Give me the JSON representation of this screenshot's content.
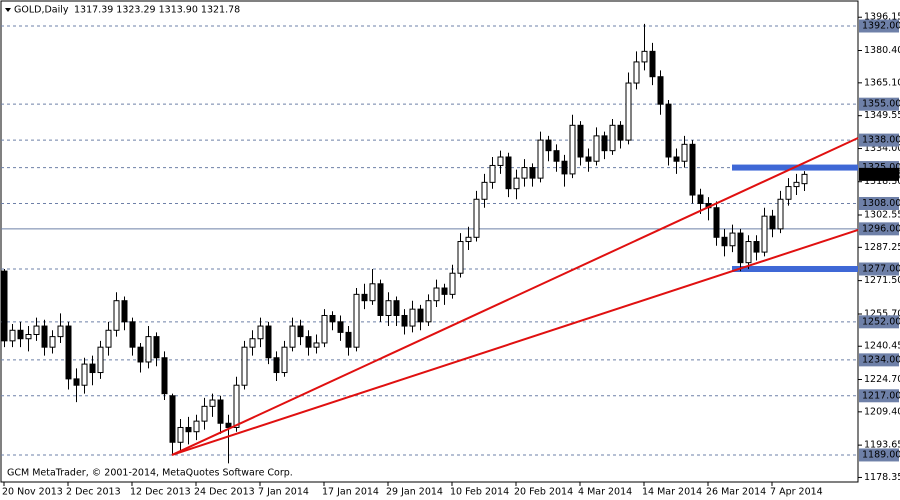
{
  "chart_data": {
    "type": "candlestick",
    "title": "GOLD,Daily",
    "quote": "1317.39 1323.29 1313.90 1321.78",
    "footer": "GCM MetaTrader, © 2001-2014, MetaQuotes Software Corp.",
    "categories": [
      "20 Nov 2013",
      null,
      null,
      null,
      null,
      null,
      null,
      null,
      "2 Dec 2013",
      null,
      null,
      null,
      null,
      null,
      null,
      null,
      "12 Dec 2013",
      null,
      null,
      null,
      null,
      null,
      null,
      null,
      "24 Dec 2013",
      null,
      null,
      null,
      null,
      null,
      null,
      null,
      "7 Jan 2014",
      null,
      null,
      null,
      null,
      null,
      null,
      null,
      "17 Jan 2014",
      null,
      null,
      null,
      null,
      null,
      null,
      null,
      "29 Jan 2014",
      null,
      null,
      null,
      null,
      null,
      null,
      null,
      "10 Feb 2014",
      null,
      null,
      null,
      null,
      null,
      null,
      null,
      "20 Feb 2014",
      null,
      null,
      null,
      null,
      null,
      null,
      null,
      "4 Mar 2014",
      null,
      null,
      null,
      null,
      null,
      null,
      null,
      "14 Mar 2014",
      null,
      null,
      null,
      null,
      null,
      null,
      null,
      "26 Mar 2014",
      null,
      null,
      null,
      null,
      null,
      null,
      null,
      "7 Apr 2014",
      null,
      null,
      null,
      null
    ],
    "open": [
      1276,
      1243,
      1248,
      1244,
      1246,
      1250,
      1240,
      1245,
      1250,
      1225,
      1222,
      1232,
      1228,
      1240,
      1248,
      1262,
      1252,
      1240,
      1233,
      1245,
      1235,
      1217,
      1195,
      1202,
      1200,
      1205,
      1212,
      1215,
      1204,
      1202,
      1222,
      1240,
      1244,
      1250,
      1235,
      1228,
      1240,
      1250,
      1245,
      1240,
      1242,
      1255,
      1252,
      1247,
      1240,
      1265,
      1262,
      1270,
      1255,
      1262,
      1255,
      1250,
      1258,
      1252,
      1262,
      1268,
      1265,
      1275,
      1290,
      1292,
      1310,
      1318,
      1326,
      1330,
      1315,
      1320,
      1325,
      1320,
      1338,
      1333,
      1328,
      1322,
      1345,
      1330,
      1328,
      1340,
      1333,
      1345,
      1338,
      1365,
      1375,
      1380,
      1368,
      1355,
      1330,
      1328,
      1336,
      1312,
      1308,
      1306,
      1292,
      1288,
      1294,
      1280,
      1290,
      1285,
      1302,
      1296,
      1310,
      1316,
      1317.39
    ],
    "high": [
      1277,
      1251,
      1252,
      1250,
      1254,
      1253,
      1248,
      1256,
      1252,
      1230,
      1235,
      1236,
      1243,
      1252,
      1266,
      1264,
      1254,
      1242,
      1250,
      1247,
      1238,
      1218,
      1206,
      1207,
      1208,
      1216,
      1218,
      1217,
      1208,
      1226,
      1243,
      1248,
      1254,
      1252,
      1238,
      1243,
      1254,
      1253,
      1248,
      1246,
      1258,
      1257,
      1255,
      1250,
      1268,
      1270,
      1277,
      1272,
      1266,
      1264,
      1258,
      1262,
      1260,
      1265,
      1272,
      1270,
      1279,
      1294,
      1297,
      1314,
      1322,
      1330,
      1333,
      1332,
      1324,
      1329,
      1327,
      1342,
      1340,
      1336,
      1331,
      1350,
      1347,
      1334,
      1344,
      1342,
      1348,
      1347,
      1370,
      1380,
      1393,
      1384,
      1371,
      1357,
      1334,
      1340,
      1338,
      1315,
      1311,
      1309,
      1296,
      1298,
      1296,
      1293,
      1293,
      1306,
      1305,
      1314,
      1320,
      1322,
      1323.29
    ],
    "low": [
      1240,
      1240,
      1240,
      1238,
      1243,
      1236,
      1237,
      1242,
      1220,
      1214,
      1218,
      1222,
      1225,
      1236,
      1245,
      1248,
      1236,
      1228,
      1230,
      1231,
      1215,
      1189,
      1191,
      1194,
      1196,
      1201,
      1207,
      1199,
      1185,
      1200,
      1220,
      1236,
      1240,
      1232,
      1224,
      1226,
      1238,
      1241,
      1236,
      1237,
      1240,
      1248,
      1243,
      1236,
      1238,
      1258,
      1260,
      1252,
      1250,
      1250,
      1246,
      1247,
      1248,
      1250,
      1259,
      1260,
      1263,
      1273,
      1286,
      1290,
      1306,
      1315,
      1322,
      1311,
      1310,
      1316,
      1316,
      1318,
      1328,
      1323,
      1316,
      1320,
      1326,
      1323,
      1326,
      1329,
      1331,
      1334,
      1336,
      1362,
      1371,
      1364,
      1350,
      1326,
      1322,
      1325,
      1308,
      1303,
      1300,
      1288,
      1283,
      1285,
      1276,
      1277,
      1281,
      1283,
      1292,
      1294,
      1307,
      1312,
      1313.9
    ],
    "close": [
      1243,
      1248,
      1244,
      1246,
      1250,
      1240,
      1245,
      1250,
      1225,
      1222,
      1232,
      1228,
      1240,
      1248,
      1262,
      1252,
      1240,
      1233,
      1245,
      1235,
      1218,
      1195,
      1202,
      1200,
      1205,
      1212,
      1215,
      1204,
      1202,
      1222,
      1240,
      1244,
      1250,
      1235,
      1228,
      1240,
      1250,
      1245,
      1240,
      1242,
      1255,
      1252,
      1247,
      1240,
      1265,
      1262,
      1270,
      1255,
      1262,
      1255,
      1250,
      1258,
      1252,
      1262,
      1268,
      1265,
      1275,
      1290,
      1292,
      1310,
      1318,
      1326,
      1330,
      1315,
      1320,
      1325,
      1320,
      1338,
      1333,
      1328,
      1322,
      1345,
      1330,
      1328,
      1340,
      1333,
      1345,
      1338,
      1365,
      1375,
      1380,
      1368,
      1355,
      1330,
      1328,
      1336,
      1312,
      1308,
      1306,
      1292,
      1288,
      1294,
      1280,
      1290,
      1285,
      1302,
      1296,
      1310,
      1316,
      1318,
      1321.78
    ],
    "ylim": [
      1176.2,
      1404.3
    ],
    "yticks": [
      1396.15,
      {
        "value": 1380.4,
        "label": "1380.40"
      },
      {
        "value": 1365.1,
        "label": "1365.10"
      },
      1349.55,
      {
        "value": 1334.0,
        "label": "1334.00"
      },
      {
        "value": 1318.3,
        "label": "1318.30"
      },
      1302.55,
      1287.25,
      {
        "value": 1271.5,
        "label": "1271.50"
      },
      {
        "value": 1255.7,
        "label": "1255.70"
      },
      1240.45,
      {
        "value": 1224.7,
        "label": "1224.70"
      },
      {
        "value": 1209.4,
        "label": "1209.40"
      },
      1193.65,
      1178.35
    ],
    "levels": [
      {
        "value": 1392,
        "label": "1392.00"
      },
      {
        "value": 1355,
        "label": "1355.00"
      },
      {
        "value": 1338,
        "label": "1338.00"
      },
      {
        "value": 1325,
        "label": "1325.00"
      },
      {
        "value": 1308,
        "label": "1308.00"
      },
      {
        "value": 1296,
        "label": "1296.00",
        "solid": true
      },
      {
        "value": 1277,
        "label": "1277.00"
      },
      {
        "value": 1252,
        "label": "1252.00"
      },
      {
        "value": 1234,
        "label": "1234.00"
      },
      {
        "value": 1217,
        "label": "1217.00"
      },
      {
        "value": 1189,
        "label": "1189.00"
      }
    ],
    "zones": [
      {
        "value": 1325,
        "from": 91
      },
      {
        "value": 1277,
        "from": 91
      }
    ],
    "trendlines": [
      {
        "x": [
          21,
          106.75
        ],
        "y": [
          1189,
          1339
        ],
        "color": "#e01010"
      },
      {
        "x": [
          21,
          106.75
        ],
        "y": [
          1189,
          1295.5
        ],
        "color": "#e01010"
      }
    ],
    "level_color": "#6e80a8",
    "zone_color": "#3f68d6",
    "bull_color": "#ffffff",
    "bear_color": "#000000"
  }
}
